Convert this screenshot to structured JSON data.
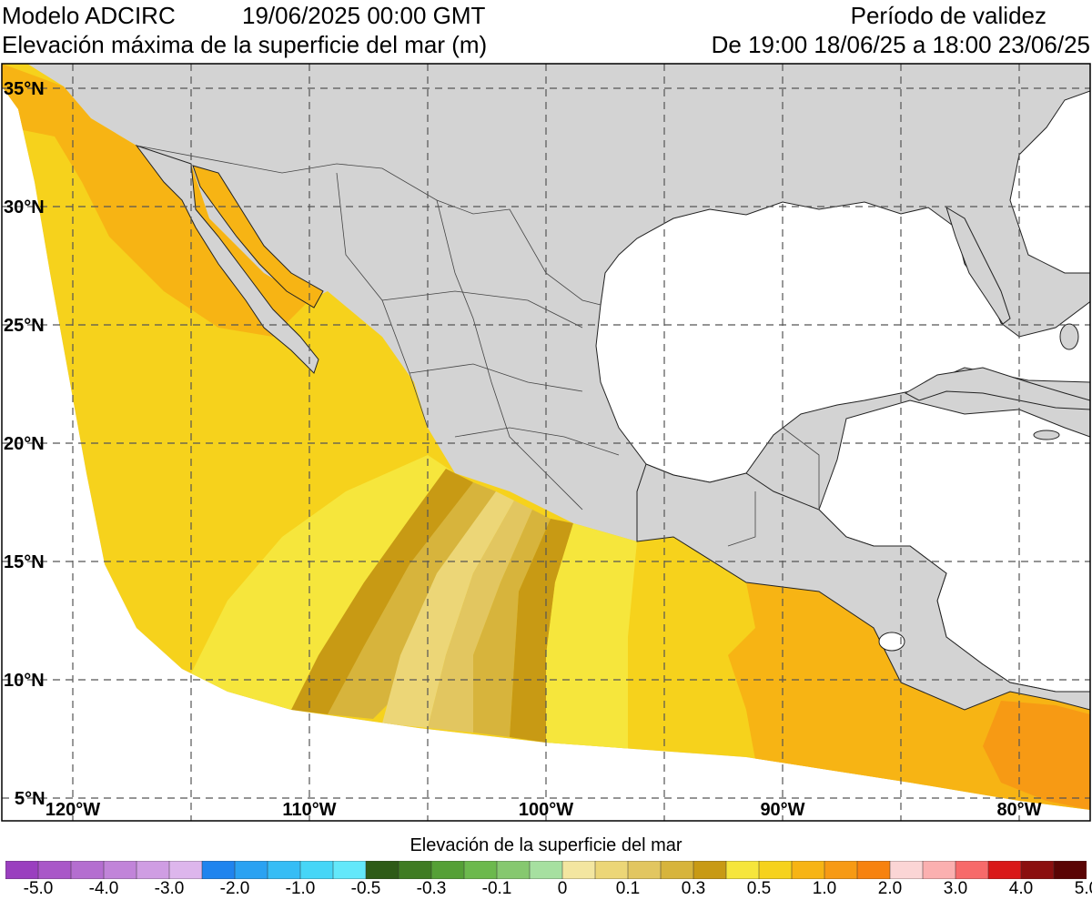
{
  "header": {
    "model": "Modelo ADCIRC",
    "date": "19/06/2025 00:00 GMT",
    "variable": "Elevación máxima de la superficie del mar (m)",
    "validity_title": "Período de validez",
    "validity_range": "De 19:00 18/06/25 a 18:00 23/06/25"
  },
  "map": {
    "lat_labels": [
      "35°N",
      "30°N",
      "25°N",
      "20°N",
      "15°N",
      "10°N",
      "5°N"
    ],
    "lon_labels": [
      "120°W",
      "110°W",
      "100°W",
      "90°W",
      "80°W"
    ],
    "colors": {
      "land": "#d3d3d3",
      "ocean_outside": "#ffffff",
      "grid": "#555555"
    }
  },
  "legend": {
    "title": "Elevación de la superficie del mar",
    "colors": [
      "#9a3fbf",
      "#a957c8",
      "#b46ed0",
      "#c184d9",
      "#cf9de3",
      "#ddb6ec",
      "#1f84ee",
      "#2aa2f2",
      "#36bdf5",
      "#46d6f7",
      "#63e8fa",
      "#2e5b17",
      "#3f7c22",
      "#55a036",
      "#6cb94d",
      "#86c86f",
      "#a6e0a0",
      "#f3e6a0",
      "#ecd677",
      "#e2c660",
      "#d7b43c",
      "#c89a14",
      "#f6e63c",
      "#f6d21c",
      "#f7b414",
      "#f79a14",
      "#f7820f",
      "#fbd5d5",
      "#fbb0b0",
      "#f76a6a",
      "#d91818",
      "#8b0f0f",
      "#5a0404"
    ],
    "labels": [
      "-5.0",
      "-4.0",
      "-3.0",
      "-2.0",
      "-1.0",
      "-0.5",
      "-0.3",
      "-0.1",
      "0",
      "0.1",
      "0.3",
      "0.5",
      "1.0",
      "2.0",
      "3.0",
      "4.0",
      "5.0"
    ]
  }
}
